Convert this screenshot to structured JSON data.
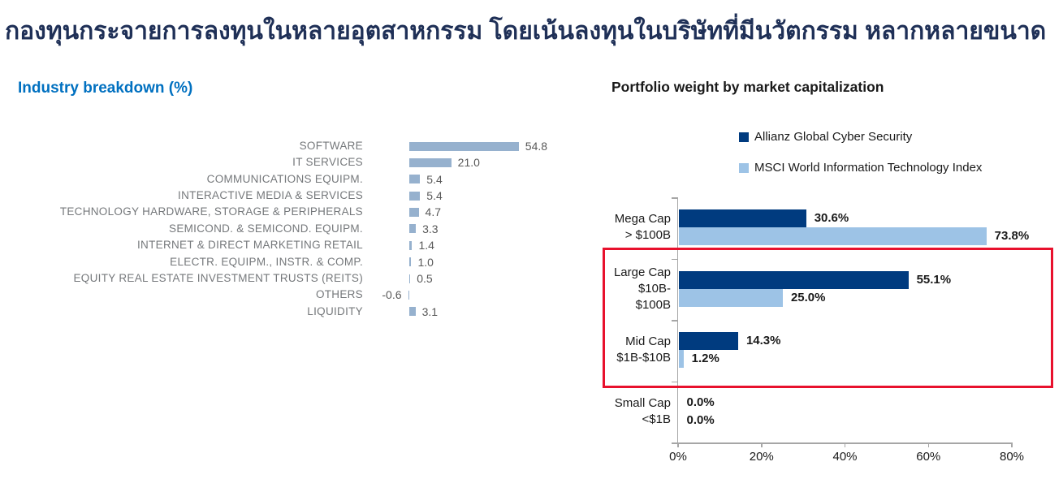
{
  "page": {
    "title_th": "กองทุนกระจายการลงทุนในหลายอุตสาหกรรม โดยเน้นลงทุนในบริษัทที่มีนวัตกรรม หลากหลายขนาด"
  },
  "colors": {
    "heading_navy": "#1F3057",
    "left_title_blue": "#0070C0",
    "left_bar_steel_blue": "#96B1CE",
    "series_dark_navy": "#003B7F",
    "series_light_blue": "#9DC3E6",
    "highlight_red": "#E8112D",
    "axis_gray": "#A6A6A6",
    "category_text_gray": "#75787B",
    "value_text_gray": "#595959"
  },
  "chart_data": [
    {
      "type": "bar",
      "orientation": "horizontal",
      "title": "Industry breakdown (%)",
      "axis_hidden": true,
      "xlim": [
        -1,
        60
      ],
      "categories": [
        "SOFTWARE",
        "IT SERVICES",
        "COMMUNICATIONS EQUIPM.",
        "INTERACTIVE MEDIA & SERVICES",
        "TECHNOLOGY HARDWARE, STORAGE & PERIPHERALS",
        "SEMICOND. & SEMICOND. EQUIPM.",
        "INTERNET & DIRECT MARKETING RETAIL",
        "ELECTR. EQUIPM., INSTR. & COMP.",
        "EQUITY REAL ESTATE INVESTMENT TRUSTS (REITS)",
        "OTHERS",
        "LIQUIDITY"
      ],
      "values": [
        54.8,
        21.0,
        5.4,
        5.4,
        4.7,
        3.3,
        1.4,
        1.0,
        0.5,
        -0.6,
        3.1
      ],
      "value_labels": [
        "54.8",
        "21.0",
        "5.4",
        "5.4",
        "4.7",
        "3.3",
        "1.4",
        "1.0",
        "0.5",
        "-0.6",
        "3.1"
      ],
      "bar_color": "#96B1CE"
    },
    {
      "type": "bar",
      "orientation": "horizontal",
      "title": "Portfolio weight by market capitalization",
      "xlim": [
        0,
        80
      ],
      "x_ticks": [
        "0%",
        "20%",
        "40%",
        "60%",
        "80%"
      ],
      "legend_position": "top",
      "categories": [
        [
          "Mega Cap",
          "> $100B"
        ],
        [
          "Large Cap",
          "$10B-",
          "$100B"
        ],
        [
          "Mid Cap",
          "$1B-$10B"
        ],
        [
          "Small Cap",
          "<$1B"
        ]
      ],
      "series": [
        {
          "name": "Allianz Global Cyber Security",
          "color": "#003B7F",
          "values": [
            30.6,
            55.1,
            14.3,
            0.0
          ],
          "labels": [
            "30.6%",
            "55.1%",
            "14.3%",
            "0.0%"
          ]
        },
        {
          "name": "MSCI World Information Technology Index",
          "color": "#9DC3E6",
          "values": [
            73.8,
            25.0,
            1.2,
            0.0
          ],
          "labels": [
            "73.8%",
            "25.0%",
            "1.2%",
            "0.0%"
          ]
        }
      ],
      "highlight": {
        "shape": "rectangle",
        "color": "#E8112D",
        "covers": [
          "Large Cap $10B-$100B",
          "Mid Cap $1B-$10B"
        ]
      }
    }
  ]
}
